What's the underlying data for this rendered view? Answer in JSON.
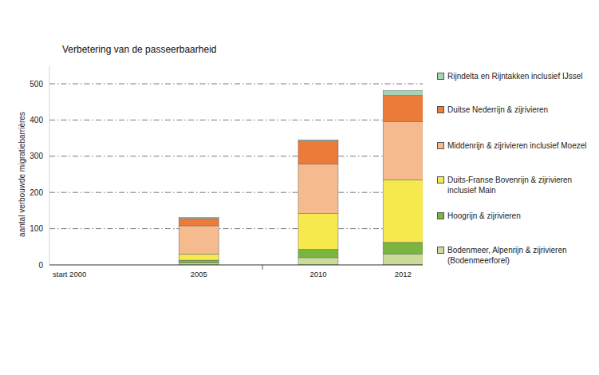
{
  "chart_data": {
    "type": "bar",
    "stacked": true,
    "grid": true,
    "legend": "right",
    "title": "Verbetering van de passeerbaarheid",
    "y_label": "aantal verbouwde migratiebarrières",
    "categories": [
      "start 2000",
      "2005",
      "2010",
      "2012"
    ],
    "ylim": [
      0,
      550
    ],
    "yticks": [
      0,
      100,
      200,
      300,
      400,
      500
    ],
    "series": [
      {
        "name": "Bodenmeer, Alpenrijn & zijrivieren (Bodenmeerforel)",
        "color": "#cbdc98",
        "values": [
          0,
          5,
          20,
          30
        ]
      },
      {
        "name": "Hoogrijn & zijrivieren",
        "color": "#7ab540",
        "values": [
          0,
          8,
          23,
          32
        ]
      },
      {
        "name": "Duits-Franse Bovenrijn & zijrivieren inclusief Main",
        "color": "#f6e94e",
        "values": [
          0,
          17,
          99,
          173
        ]
      },
      {
        "name": "Middenrijn & zijrivieren inclusief Moezel",
        "color": "#f5bb8e",
        "values": [
          0,
          78,
          136,
          160
        ]
      },
      {
        "name": "Duitse Nederrijn & zijrivieren",
        "color": "#ec7a38",
        "values": [
          0,
          20,
          64,
          73
        ]
      },
      {
        "name": "Rijndelta en Rijntakken inclusief IJssel",
        "color": "#a3d4b6",
        "values": [
          0,
          3,
          3,
          13
        ]
      }
    ]
  }
}
